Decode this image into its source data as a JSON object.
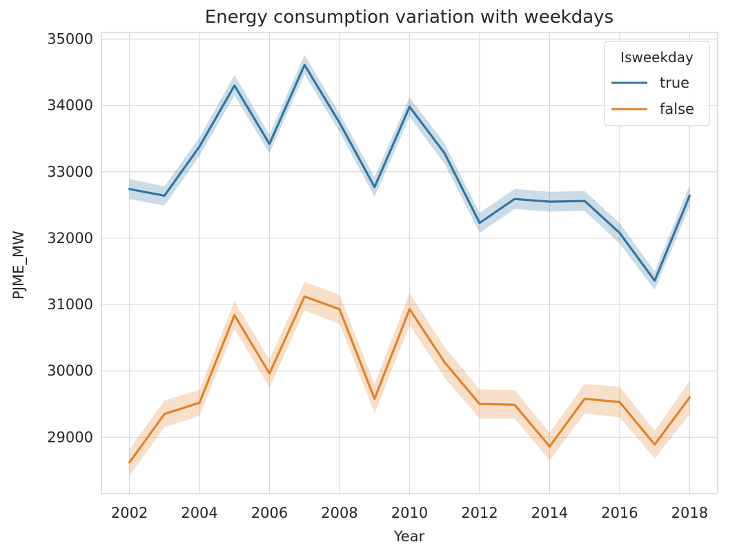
{
  "chart_data": {
    "type": "line",
    "title": "Energy consumption variation with weekdays",
    "xlabel": "Year",
    "ylabel": "PJME_MW",
    "x": [
      2002,
      2003,
      2004,
      2005,
      2006,
      2007,
      2008,
      2009,
      2010,
      2011,
      2012,
      2013,
      2014,
      2015,
      2016,
      2017,
      2018
    ],
    "xticks": [
      2002,
      2004,
      2006,
      2008,
      2010,
      2012,
      2014,
      2016,
      2018
    ],
    "yticks": [
      29000,
      30000,
      31000,
      32000,
      33000,
      34000,
      35000
    ],
    "xlim": [
      2001.2,
      2018.8
    ],
    "ylim": [
      28150,
      35100
    ],
    "grid": true,
    "legend": {
      "title": "Isweekday",
      "placement": "top-right"
    },
    "series": [
      {
        "name": "true",
        "color": "#3274a1",
        "values": [
          32740,
          32640,
          33380,
          34300,
          33420,
          34610,
          33740,
          32770,
          33980,
          33280,
          32230,
          32590,
          32550,
          32560,
          32080,
          31360,
          32640
        ],
        "ci_lower": [
          32590,
          32490,
          33240,
          34150,
          33280,
          34470,
          33600,
          32620,
          33830,
          33120,
          32080,
          32440,
          32400,
          32410,
          31920,
          31220,
          32480
        ],
        "ci_upper": [
          32890,
          32780,
          33520,
          34460,
          33560,
          34760,
          33880,
          32920,
          34120,
          33430,
          32380,
          32740,
          32700,
          32710,
          32230,
          31500,
          32800
        ]
      },
      {
        "name": "false",
        "color": "#e1812c",
        "values": [
          28620,
          29350,
          29520,
          30840,
          29960,
          31120,
          30930,
          29580,
          30930,
          30130,
          29500,
          29490,
          28860,
          29580,
          29530,
          28890,
          29600
        ],
        "ci_lower": [
          28420,
          29150,
          29320,
          30630,
          29750,
          30910,
          30710,
          29360,
          30690,
          29900,
          29280,
          29280,
          28650,
          29360,
          29300,
          28680,
          29350
        ],
        "ci_upper": [
          28820,
          29550,
          29720,
          31050,
          30170,
          31340,
          31150,
          29800,
          31170,
          30360,
          29720,
          29710,
          29070,
          29800,
          29760,
          29100,
          29850
        ]
      }
    ]
  }
}
